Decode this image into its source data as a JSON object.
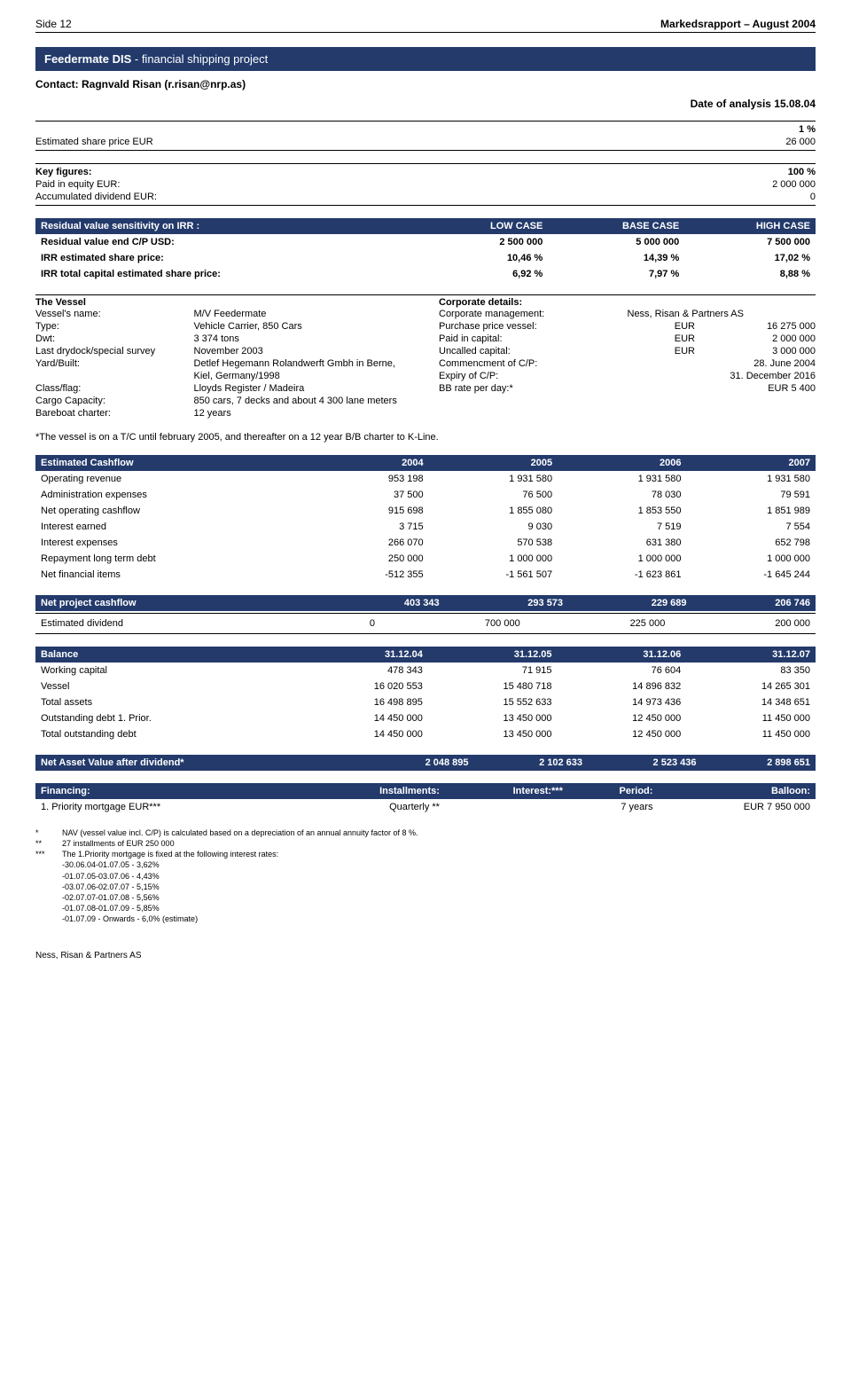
{
  "page": {
    "side": "Side 12",
    "report": "Markedsrapport – August 2004"
  },
  "title": {
    "main": "Feedermate  DIS",
    "sub": " - financial shipping project"
  },
  "contact": "Contact: Ragnvald Risan (r.risan@nrp.as)",
  "date_label": "Date of analysis 15.08.04",
  "share_price": {
    "pct_label": "1 %",
    "label": "Estimated share price EUR",
    "value": "26 000"
  },
  "key_figures": {
    "heading": "Key figures:",
    "heading_val": "100 %",
    "rows": [
      {
        "l": "Paid in equity EUR:",
        "v": "2 000 000"
      },
      {
        "l": "Accumulated dividend EUR:",
        "v": "0"
      }
    ]
  },
  "irr": {
    "header": [
      "Residual value sensitivity on IRR :",
      "LOW CASE",
      "BASE CASE",
      "HIGH CASE"
    ],
    "rows": [
      [
        "Residual value end C/P USD:",
        "2 500 000",
        "5 000 000",
        "7 500 000"
      ],
      [
        "IRR estimated share price:",
        "10,46 %",
        "14,39 %",
        "17,02 %"
      ],
      [
        "IRR total capital estimated share price:",
        "6,92 %",
        "7,97 %",
        "8,88 %"
      ]
    ]
  },
  "vessel": {
    "heading": "The Vessel",
    "rows": [
      [
        "Vessel's name:",
        "M/V Feedermate"
      ],
      [
        "Type:",
        "Vehicle Carrier, 850 Cars"
      ],
      [
        "Dwt:",
        "3 374 tons"
      ],
      [
        "Last drydock/special survey",
        "  November 2003"
      ],
      [
        "Yard/Built:",
        "Detlef Hegemann Rolandwerft Gmbh in Berne,"
      ],
      [
        "",
        "Kiel, Germany/1998"
      ],
      [
        "Class/flag:",
        "Lloyds Register / Madeira"
      ],
      [
        "Cargo Capacity:",
        "850 cars, 7 decks and about 4 300 lane meters"
      ],
      [
        "Bareboat charter:",
        "12 years"
      ]
    ]
  },
  "corporate": {
    "heading": "Corporate details:",
    "mgmt_label": "Corporate management:",
    "mgmt_value": "Ness, Risan & Partners AS",
    "rows": [
      [
        "Purchase price vessel:",
        "EUR",
        "16 275 000"
      ],
      [
        "Paid in capital:",
        "EUR",
        "2 000 000"
      ],
      [
        "Uncalled capital:",
        "EUR",
        "3 000 000"
      ],
      [
        "Commencment of C/P:",
        "",
        "28. June 2004"
      ],
      [
        "Expiry of C/P:",
        "",
        "31. December 2016"
      ],
      [
        "BB rate per day:*",
        "",
        "EUR 5 400"
      ]
    ]
  },
  "note": "*The vessel is on a T/C until february 2005, and thereafter on a 12 year B/B charter to K-Line.",
  "cashflow": {
    "header": [
      "Estimated Cashflow",
      "2004",
      "2005",
      "2006",
      "2007"
    ],
    "rows": [
      [
        "Operating revenue",
        "953 198",
        "1 931 580",
        "1 931 580",
        "1 931 580"
      ],
      [
        "Administration expenses",
        "37 500",
        "76 500",
        "78 030",
        "79 591"
      ],
      [
        "Net operating cashflow",
        "915 698",
        "1 855 080",
        "1 853 550",
        "1 851 989"
      ],
      [
        "Interest earned",
        "3 715",
        "9 030",
        "7 519",
        "7 554"
      ],
      [
        "Interest expenses",
        "266 070",
        "570 538",
        "631 380",
        "652 798"
      ],
      [
        "Repayment long term debt",
        "250 000",
        "1 000 000",
        "1 000 000",
        "1 000 000"
      ],
      [
        "Net financial items",
        "-512 355",
        "-1 561 507",
        "-1 623 861",
        "-1 645 244"
      ]
    ]
  },
  "npc": {
    "header": [
      "Net project cashflow",
      "403 343",
      "293 573",
      "229 689",
      "206 746"
    ],
    "row": [
      "Estimated dividend",
      "0",
      "700 000",
      "225 000",
      "200 000"
    ]
  },
  "balance": {
    "header": [
      "Balance",
      "31.12.04",
      "31.12.05",
      "31.12.06",
      "31.12.07"
    ],
    "rows": [
      [
        "Working capital",
        "478 343",
        "71 915",
        "76 604",
        "83 350"
      ],
      [
        "Vessel",
        "16 020 553",
        "15 480 718",
        "14 896 832",
        "14 265 301"
      ],
      [
        "Total assets",
        "16 498 895",
        "15 552 633",
        "14 973 436",
        "14 348 651"
      ],
      [
        "Outstanding debt 1. Prior.",
        "14 450 000",
        "13 450 000",
        "12 450 000",
        "11 450 000"
      ],
      [
        "Total outstanding debt",
        "14 450 000",
        "13 450 000",
        "12 450 000",
        "11 450 000"
      ]
    ]
  },
  "nav": {
    "header": [
      "Net Asset Value after dividend*",
      "2 048 895",
      "2 102 633",
      "2 523 436",
      "2 898 651"
    ]
  },
  "financing": {
    "header": [
      "Financing:",
      "Installments:",
      "Interest:***",
      "Period:",
      "Balloon:"
    ],
    "row": [
      "1. Priority mortgage EUR***",
      "Quarterly **",
      "",
      "7 years",
      "EUR 7 950 000"
    ]
  },
  "footnotes": [
    {
      "m": "*",
      "t": "NAV (vessel value incl. C/P) is calculated based on a depreciation of an annual annuity factor of 8 %."
    },
    {
      "m": "**",
      "t": "27 installments of EUR 250 000"
    },
    {
      "m": "***",
      "t": "The 1.Priority mortgage is fixed at the following interest rates:"
    },
    {
      "m": "",
      "t": " -30.06.04-01.07.05  - 3,62%"
    },
    {
      "m": "",
      "t": " -01.07.05-03.07.06 - 4,43%"
    },
    {
      "m": "",
      "t": " -03.07.06-02.07.07 - 5,15%"
    },
    {
      "m": "",
      "t": " -02.07.07-01.07.08 - 5,56%"
    },
    {
      "m": "",
      "t": " -01.07.08-01.07.09 - 5,85%"
    },
    {
      "m": "",
      "t": " -01.07.09 - Onwards  - 6,0% (estimate)"
    }
  ],
  "footer": "Ness, Risan & Partners AS",
  "colors": {
    "brand": "#233a6b",
    "text": "#000000",
    "bg": "#ffffff"
  }
}
